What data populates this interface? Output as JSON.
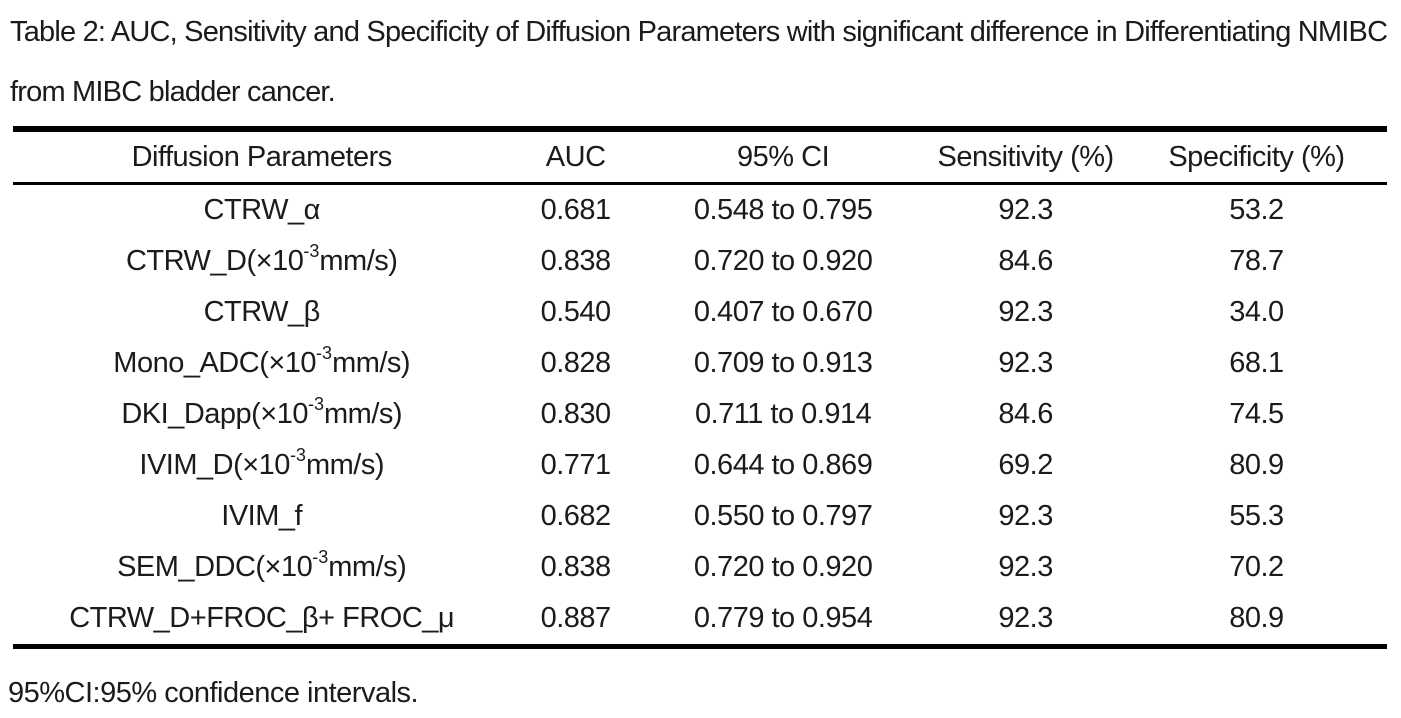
{
  "caption": "Table 2: AUC, Sensitivity and Specificity of Diffusion Parameters with significant difference in Differentiating NMIBC from MIBC bladder cancer.",
  "table": {
    "columns": [
      "Diffusion Parameters",
      "AUC",
      "95% CI",
      "Sensitivity (%)",
      "Specificity (%)"
    ],
    "rows": [
      {
        "parameter": "CTRW_α",
        "auc": "0.681",
        "ci": "0.548 to 0.795",
        "sensitivity": "92.3",
        "specificity": "53.2"
      },
      {
        "parameter": "CTRW_D(×10⁻³mm/s)",
        "auc": "0.838",
        "ci": "0.720 to 0.920",
        "sensitivity": "84.6",
        "specificity": "78.7"
      },
      {
        "parameter": "CTRW_β",
        "auc": "0.540",
        "ci": "0.407 to 0.670",
        "sensitivity": "92.3",
        "specificity": "34.0"
      },
      {
        "parameter": "Mono_ADC(×10⁻³mm/s)",
        "auc": "0.828",
        "ci": "0.709 to 0.913",
        "sensitivity": "92.3",
        "specificity": "68.1"
      },
      {
        "parameter": "DKI_Dapp(×10⁻³mm/s)",
        "auc": "0.830",
        "ci": "0.711 to 0.914",
        "sensitivity": "84.6",
        "specificity": "74.5"
      },
      {
        "parameter": "IVIM_D(×10⁻³mm/s)",
        "auc": "0.771",
        "ci": "0.644 to 0.869",
        "sensitivity": "69.2",
        "specificity": "80.9"
      },
      {
        "parameter": "IVIM_f",
        "auc": "0.682",
        "ci": "0.550 to 0.797",
        "sensitivity": "92.3",
        "specificity": "55.3"
      },
      {
        "parameter": "SEM_DDC(×10⁻³mm/s)",
        "auc": "0.838",
        "ci": "0.720 to 0.920",
        "sensitivity": "92.3",
        "specificity": "70.2"
      },
      {
        "parameter": "CTRW_D+FROC_β+ FROC_μ",
        "auc": "0.887",
        "ci": "0.779 to 0.954",
        "sensitivity": "92.3",
        "specificity": "80.9"
      }
    ]
  },
  "footnote": "95%CI:95% confidence intervals.",
  "colors": {
    "background": "#ffffff",
    "text": "#1b1b1b",
    "rule": "#000000"
  }
}
